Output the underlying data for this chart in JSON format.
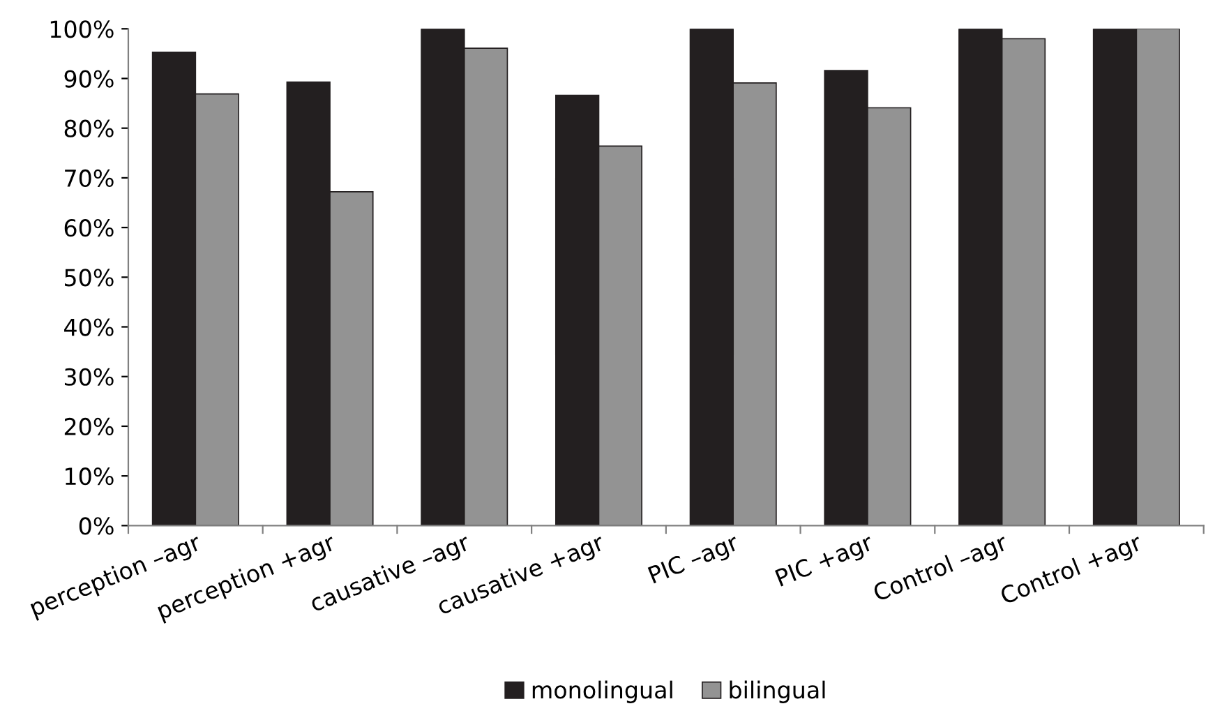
{
  "chart_data": {
    "type": "bar",
    "categories": [
      "perception –agr",
      "perception +agr",
      "causative –agr",
      "causative +agr",
      "PIC –agr",
      "PIC +agr",
      "Control –agr",
      "Control +agr"
    ],
    "series": [
      {
        "name": "monolingual",
        "color": "#231f20",
        "values": [
          95.3,
          89.3,
          100,
          86.6,
          100,
          91.6,
          100,
          100
        ]
      },
      {
        "name": "bilingual",
        "color": "#939393",
        "values": [
          86.9,
          67.2,
          96.1,
          76.4,
          89.1,
          84.1,
          98,
          100
        ]
      }
    ],
    "ylim": [
      0,
      100
    ],
    "yticks": [
      {
        "value": 0,
        "label": "0%"
      },
      {
        "value": 10,
        "label": "10%"
      },
      {
        "value": 20,
        "label": "20%"
      },
      {
        "value": 30,
        "label": "30%"
      },
      {
        "value": 40,
        "label": "40%"
      },
      {
        "value": 50,
        "label": "50%"
      },
      {
        "value": 60,
        "label": "60%"
      },
      {
        "value": 70,
        "label": "70%"
      },
      {
        "value": 80,
        "label": "80%"
      },
      {
        "value": 90,
        "label": "90%"
      },
      {
        "value": 100,
        "label": "100%"
      }
    ],
    "grid": false,
    "legend": "bottom"
  }
}
